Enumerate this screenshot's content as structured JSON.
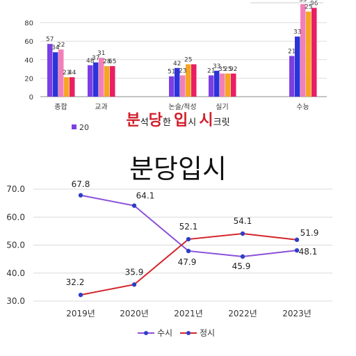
{
  "banner": {
    "chars": [
      {
        "t": "분",
        "big": true
      },
      {
        "t": "석",
        "big": false
      },
      {
        "t": "당",
        "big": true
      },
      {
        "t": "한",
        "big": false
      },
      {
        "t": " ",
        "big": false
      },
      {
        "t": "입",
        "big": true
      },
      {
        "t": "시",
        "big": false
      },
      {
        "t": " ",
        "big": false
      },
      {
        "t": "시",
        "big": true
      },
      {
        "t": "크릿",
        "big": false
      }
    ]
  },
  "headline": "분당입시",
  "colors": {
    "bar1": "#7b3fe4",
    "bar2": "#2b34d9",
    "bar3": "#f27fb8",
    "bar4": "#f5a623",
    "bar5": "#e91e63",
    "susi": "#8a4fd8",
    "jeongsi": "#d3232a"
  },
  "chart_data": [
    {
      "type": "bar",
      "categories": [
        "종합",
        "교과",
        "논술/적성",
        "실기",
        "수능"
      ],
      "category_visible": [
        "종합",
        "교과",
        "논술/적성",
        "실기",
        "수능"
      ],
      "series": [
        {
          "values": [
            57,
            34,
            22,
            23,
            44
          ]
        },
        {
          "values": [
            48,
            37,
            31,
            28,
            65
          ]
        },
        {
          "values": [
            51,
            42,
            23,
            25,
            100
          ]
        },
        {
          "values": [
            21,
            33,
            35,
            25,
            92
          ]
        },
        {
          "values": [
            21,
            33,
            35,
            25,
            96
          ]
        }
      ],
      "data_labels": [
        [
          "57",
          "48",
          "51",
          "21",
          "21"
        ],
        [
          "34",
          "37",
          "42",
          "33",
          "33"
        ],
        [
          "22",
          "31",
          "23",
          "35",
          "35"
        ],
        [
          "23",
          "28",
          "25",
          "25",
          "25"
        ],
        [
          "44",
          "65",
          "",
          "92",
          "96"
        ]
      ],
      "ylim": [
        0,
        100
      ],
      "yticks": [
        "0",
        "20",
        "40",
        "60",
        "80"
      ],
      "legend_fragment": "20"
    },
    {
      "type": "line",
      "categories": [
        "2019년",
        "2020년",
        "2021년",
        "2022년",
        "2023년"
      ],
      "series": [
        {
          "name": "수시",
          "values": [
            67.8,
            64.1,
            47.9,
            45.9,
            48.1
          ],
          "labels": [
            "67.8",
            "64.1",
            "47.9",
            "45.9",
            "48.1"
          ]
        },
        {
          "name": "정시",
          "values": [
            32.2,
            35.9,
            52.1,
            54.1,
            51.9
          ],
          "labels": [
            "32.2",
            "35.9",
            "52.1",
            "54.1",
            "51.9"
          ]
        }
      ],
      "ylim": [
        30,
        70
      ],
      "yticks": [
        "30.0",
        "40.0",
        "50.0",
        "60.0",
        "70.0"
      ],
      "grid": true,
      "legend": "bottom"
    }
  ]
}
